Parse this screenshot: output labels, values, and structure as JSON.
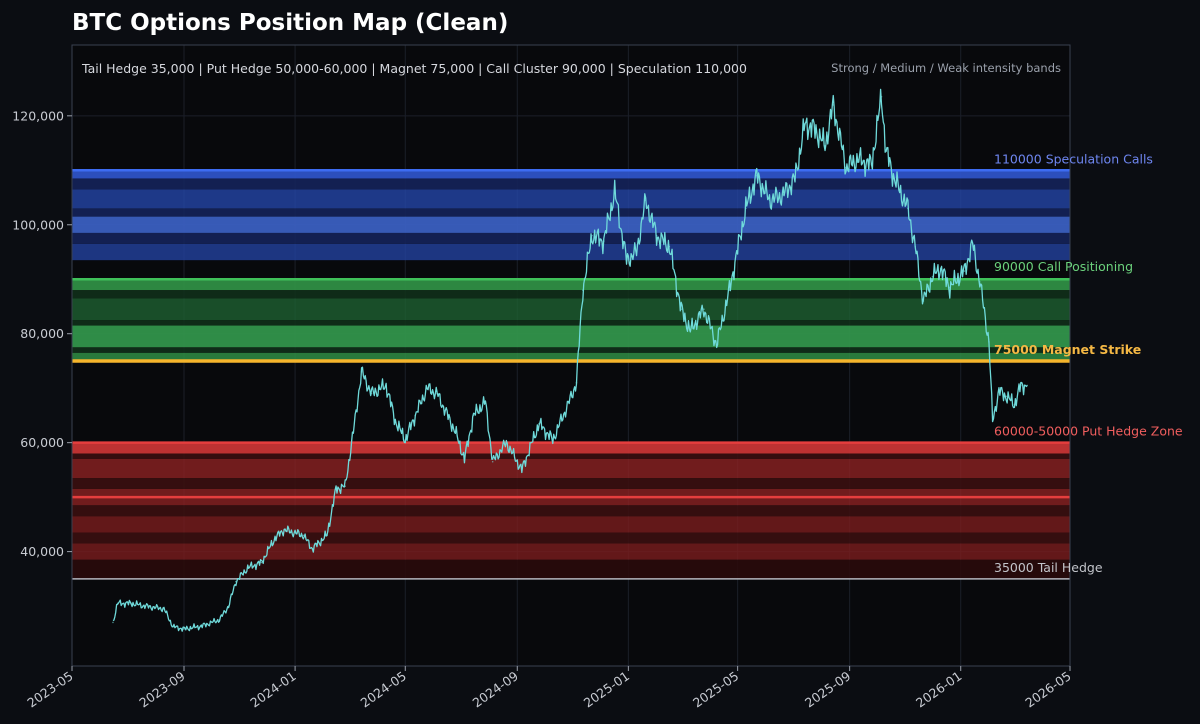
{
  "chart_data": {
    "type": "line",
    "title": "BTC Options Position Map (Clean)",
    "subtitle": "Tail Hedge 35,000 | Put Hedge 50,000-60,000 | Magnet 75,000 | Call Cluster 90,000 | Speculation 110,000",
    "note": "Strong / Medium / Weak intensity bands",
    "xlim": [
      "2023-05",
      "2026-05"
    ],
    "ylim": [
      19000,
      133000
    ],
    "x_ticks": [
      "2023-05",
      "2023-09",
      "2024-01",
      "2024-05",
      "2024-09",
      "2025-01",
      "2025-05",
      "2025-09",
      "2026-01",
      "2026-05"
    ],
    "y_ticks": [
      {
        "value": 40000,
        "label": "40,000"
      },
      {
        "value": 60000,
        "label": "60,000"
      },
      {
        "value": 80000,
        "label": "80,000"
      },
      {
        "value": 100000,
        "label": "100,000"
      },
      {
        "value": 120000,
        "label": "120,000"
      }
    ],
    "colors": {
      "price": "#6fdada",
      "speculation": "#3d6cf2",
      "call": "#3fc15a",
      "magnet": "#f5b52c",
      "put": "#e53e3e",
      "tail": "#b4b6be"
    },
    "levels": [
      {
        "key": "speculation",
        "value": 110000,
        "label": "110000  Speculation Calls",
        "color": "#6e86f0",
        "bold": false
      },
      {
        "key": "call",
        "value": 90000,
        "label": "90000  Call Positioning",
        "color": "#6bd17c",
        "bold": false
      },
      {
        "key": "magnet",
        "value": 75000,
        "label": "75000  Magnet Strike",
        "color": "#f5b844",
        "bold": true
      },
      {
        "key": "put",
        "value": 60000,
        "label": "60000-50000  Put Hedge Zone",
        "color": "#f05e5e",
        "bold": false
      },
      {
        "key": "tail",
        "value": 35000,
        "label": "35000  Tail Hedge",
        "color": "#c2c4ca",
        "bold": false
      }
    ],
    "bands": [
      {
        "from": 108500,
        "to": 110000,
        "color": "#2e53c6",
        "opacity": 0.95
      },
      {
        "from": 103000,
        "to": 106500,
        "color": "#2446a8",
        "opacity": 0.8
      },
      {
        "from": 98500,
        "to": 101500,
        "color": "#3a5fc0",
        "opacity": 0.95
      },
      {
        "from": 93500,
        "to": 96500,
        "color": "#2446a8",
        "opacity": 0.75
      },
      {
        "from": 106500,
        "to": 108500,
        "color": "#15235a",
        "opacity": 0.9
      },
      {
        "from": 101500,
        "to": 103000,
        "color": "#15235a",
        "opacity": 0.9
      },
      {
        "from": 96500,
        "to": 98500,
        "color": "#15235a",
        "opacity": 0.9
      },
      {
        "from": 88000,
        "to": 90000,
        "color": "#2f8e45",
        "opacity": 0.95
      },
      {
        "from": 82500,
        "to": 86500,
        "color": "#1f6633",
        "opacity": 0.75
      },
      {
        "from": 77500,
        "to": 81500,
        "color": "#32944b",
        "opacity": 0.95
      },
      {
        "from": 75000,
        "to": 76500,
        "color": "#2f8e45",
        "opacity": 0.85
      },
      {
        "from": 86500,
        "to": 88000,
        "color": "#11301a",
        "opacity": 0.9
      },
      {
        "from": 81500,
        "to": 82500,
        "color": "#11301a",
        "opacity": 0.9
      },
      {
        "from": 76500,
        "to": 77500,
        "color": "#11301a",
        "opacity": 0.9
      },
      {
        "from": 58000,
        "to": 60000,
        "color": "#c73535",
        "opacity": 0.95
      },
      {
        "from": 53500,
        "to": 57000,
        "color": "#8c2222",
        "opacity": 0.8
      },
      {
        "from": 48500,
        "to": 51500,
        "color": "#8c2222",
        "opacity": 0.8
      },
      {
        "from": 43500,
        "to": 46500,
        "color": "#7a1d1d",
        "opacity": 0.8
      },
      {
        "from": 38500,
        "to": 41500,
        "color": "#7a1d1d",
        "opacity": 0.8
      },
      {
        "from": 57000,
        "to": 58000,
        "color": "#3b0f0f",
        "opacity": 0.9
      },
      {
        "from": 51500,
        "to": 53500,
        "color": "#3b0f0f",
        "opacity": 0.9
      },
      {
        "from": 46500,
        "to": 48500,
        "color": "#3b0f0f",
        "opacity": 0.9
      },
      {
        "from": 41500,
        "to": 43500,
        "color": "#3b0f0f",
        "opacity": 0.9
      },
      {
        "from": 35000,
        "to": 38500,
        "color": "#2a0b0b",
        "opacity": 0.9
      }
    ],
    "series": [
      {
        "name": "BTC price",
        "x": [
          "2023-06-15",
          "2023-06-20",
          "2023-07-05",
          "2023-07-20",
          "2023-08-10",
          "2023-08-20",
          "2023-09-01",
          "2023-09-20",
          "2023-10-10",
          "2023-10-20",
          "2023-10-28",
          "2023-11-10",
          "2023-11-25",
          "2023-12-10",
          "2023-12-20",
          "2024-01-10",
          "2024-01-20",
          "2024-02-05",
          "2024-02-15",
          "2024-02-25",
          "2024-03-05",
          "2024-03-14",
          "2024-03-25",
          "2024-04-10",
          "2024-04-20",
          "2024-05-01",
          "2024-05-12",
          "2024-05-25",
          "2024-06-05",
          "2024-06-25",
          "2024-07-05",
          "2024-07-15",
          "2024-07-28",
          "2024-08-05",
          "2024-08-20",
          "2024-09-06",
          "2024-09-25",
          "2024-10-10",
          "2024-10-28",
          "2024-11-05",
          "2024-11-12",
          "2024-11-22",
          "2024-12-05",
          "2024-12-17",
          "2024-12-30",
          "2025-01-10",
          "2025-01-20",
          "2025-02-01",
          "2025-02-15",
          "2025-02-28",
          "2025-03-10",
          "2025-03-25",
          "2025-04-08",
          "2025-04-22",
          "2025-05-10",
          "2025-05-22",
          "2025-06-05",
          "2025-06-20",
          "2025-07-03",
          "2025-07-14",
          "2025-07-25",
          "2025-08-05",
          "2025-08-14",
          "2025-08-28",
          "2025-09-10",
          "2025-09-25",
          "2025-10-06",
          "2025-10-11",
          "2025-10-20",
          "2025-11-04",
          "2025-11-12",
          "2025-11-21",
          "2025-12-01",
          "2025-12-10",
          "2025-12-20",
          "2026-01-05",
          "2026-01-14",
          "2026-01-22",
          "2026-02-01",
          "2026-02-05",
          "2026-02-12",
          "2026-02-20",
          "2026-03-01",
          "2026-03-08",
          "2026-03-15"
        ],
        "values": [
          27000,
          30500,
          30500,
          30000,
          29500,
          26200,
          25800,
          26300,
          27500,
          30000,
          34500,
          37000,
          38000,
          42500,
          44000,
          43000,
          40500,
          43000,
          51500,
          52000,
          62000,
          73000,
          69000,
          70500,
          64000,
          60500,
          65000,
          70000,
          69000,
          62000,
          57000,
          65000,
          67500,
          56500,
          60000,
          55000,
          63500,
          60500,
          67500,
          71000,
          88000,
          98000,
          97000,
          106000,
          93500,
          95000,
          104500,
          98000,
          96000,
          84500,
          80500,
          84500,
          78000,
          88000,
          103000,
          109000,
          104500,
          105500,
          108500,
          118500,
          117500,
          114500,
          122000,
          110500,
          112000,
          111000,
          123500,
          113500,
          108500,
          103000,
          96000,
          86000,
          90500,
          92000,
          88500,
          91500,
          96500,
          89500,
          78500,
          64000,
          69500,
          68500,
          67000,
          70500,
          70500
        ]
      }
    ]
  }
}
